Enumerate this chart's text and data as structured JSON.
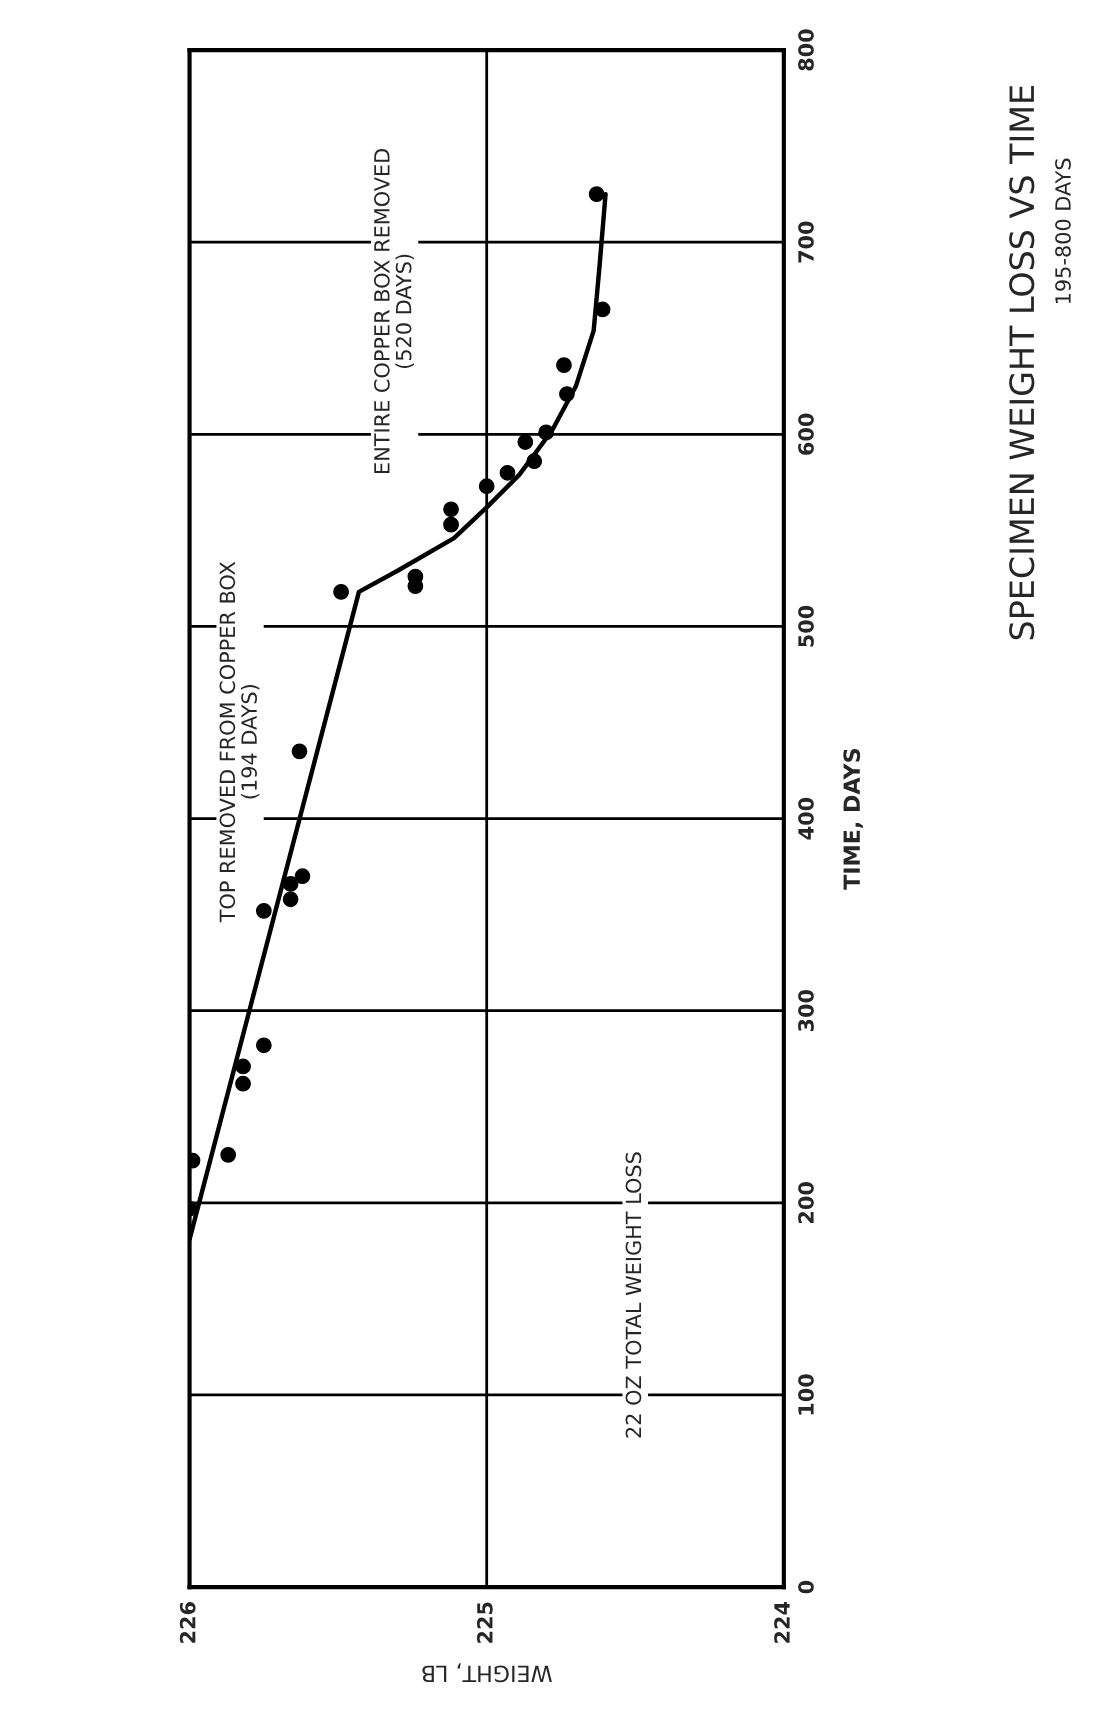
{
  "chart_data": {
    "type": "scatter",
    "title": "SPECIMEN WEIGHT LOSS VS TIME",
    "subtitle": "195-800 DAYS",
    "xlabel": "WEIGHT, LB",
    "ylabel": "TIME, DAYS",
    "annotations": [
      "TOP REMOVED FROM COPPER BOX\n(194 DAYS)",
      "ENTIRE COPPER BOX REMOVED\n(520 DAYS)",
      "22 OZ TOTAL WEIGHT LOSS"
    ],
    "series": [
      {
        "color": "#000000",
        "marker": "circle",
        "x": [
          226.0,
          225.99,
          225.87,
          225.82,
          225.82,
          225.75,
          225.75,
          225.66,
          225.66,
          225.62,
          225.63,
          225.49,
          225.24,
          225.24,
          225.12,
          225.12,
          225.0,
          224.93,
          224.84,
          224.87,
          224.8,
          224.73,
          224.74,
          224.61,
          224.63
        ],
        "values": [
          197,
          222,
          225,
          262,
          271,
          282,
          352,
          358,
          366,
          370,
          435,
          518,
          521,
          526,
          553,
          561,
          573,
          580,
          586,
          596,
          601,
          621,
          636,
          665,
          725
        ]
      },
      {
        "type": "line",
        "color": "#000000",
        "marker": "none",
        "line_style": "solid",
        "x": [
          226.0,
          225.43,
          225.3,
          225.11,
          225.0,
          224.89,
          224.78,
          224.7,
          224.64,
          224.62,
          224.6
        ],
        "values": [
          181,
          518,
          529,
          546,
          562,
          579,
          602,
          625,
          654,
          688,
          725
        ]
      }
    ],
    "xlim": [
      226,
      224
    ],
    "xticks": [
      226,
      225,
      224
    ],
    "ylim": [
      0,
      800
    ],
    "yticks": [
      0,
      100,
      200,
      300,
      400,
      500,
      600,
      700,
      800
    ],
    "grid": true
  }
}
